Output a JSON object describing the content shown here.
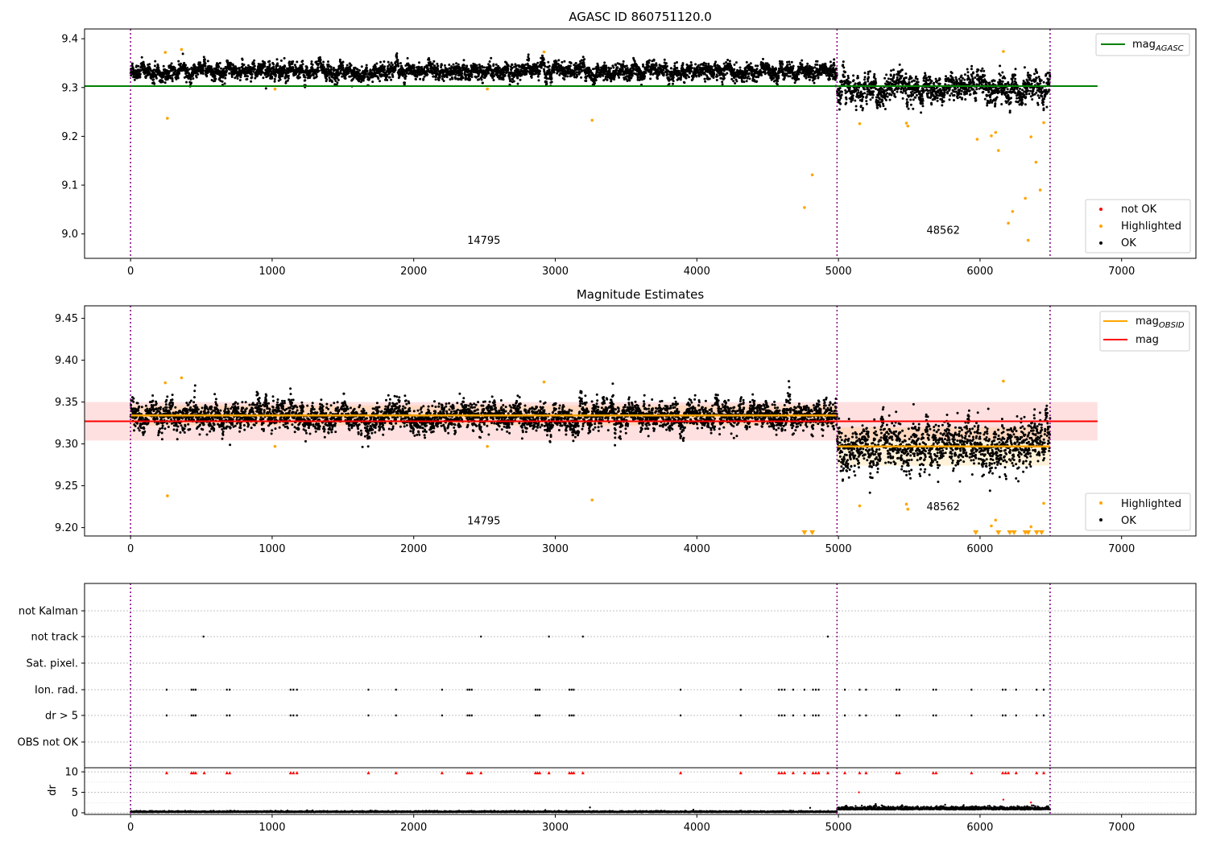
{
  "chart_data": [
    {
      "type": "scatter",
      "title": "AGASC ID 860751120.0",
      "xlim": [
        -325,
        7525
      ],
      "ylim": [
        8.95,
        9.42
      ],
      "xticks": [
        0,
        1000,
        2000,
        3000,
        4000,
        5000,
        6000,
        7000
      ],
      "yticks": [
        9.0,
        9.1,
        9.2,
        9.3,
        9.4
      ],
      "ytick_labels": [
        "9.0",
        "9.1",
        "9.2",
        "9.3",
        "9.4"
      ],
      "grid": false,
      "vlines": [
        0,
        4990,
        6495
      ],
      "obsid_labels": [
        {
          "text": "14795",
          "x": 2495,
          "y": 8.98
        },
        {
          "text": "48562",
          "x": 5740,
          "y": 9.0
        }
      ],
      "hline": {
        "y": 9.303,
        "x0": -325,
        "x1": 6830,
        "color": "#008000"
      },
      "legend_lines": [
        {
          "label_main": "mag",
          "label_sub": "AGASC",
          "color": "#008000"
        }
      ],
      "legend_lines_position": "top-right",
      "legend_points": [
        {
          "label": "not OK",
          "color": "#ff0000"
        },
        {
          "label": "Highlighted",
          "color": "#ffa500"
        },
        {
          "label": "OK",
          "color": "#000000"
        }
      ],
      "legend_points_position": "bottom-right",
      "ok_series": [
        {
          "x0": 0,
          "x1": 4990,
          "mean": 9.333,
          "spread": 0.016
        },
        {
          "x0": 4990,
          "x1": 6495,
          "mean": 9.297,
          "spread": 0.028
        }
      ],
      "highlighted": [
        [
          245,
          9.372
        ],
        [
          260,
          9.237
        ],
        [
          360,
          9.378
        ],
        [
          1020,
          9.297
        ],
        [
          2520,
          9.297
        ],
        [
          2920,
          9.373
        ],
        [
          3260,
          9.233
        ],
        [
          4760,
          9.054
        ],
        [
          4815,
          9.121
        ],
        [
          5150,
          9.226
        ],
        [
          5480,
          9.227
        ],
        [
          5490,
          9.221
        ],
        [
          5980,
          9.194
        ],
        [
          6080,
          9.201
        ],
        [
          6110,
          9.208
        ],
        [
          6130,
          9.171
        ],
        [
          6165,
          9.374
        ],
        [
          6200,
          9.022
        ],
        [
          6230,
          9.046
        ],
        [
          6320,
          9.073
        ],
        [
          6340,
          8.987
        ],
        [
          6360,
          9.199
        ],
        [
          6395,
          9.147
        ],
        [
          6425,
          9.09
        ],
        [
          6450,
          9.228
        ]
      ]
    },
    {
      "type": "scatter",
      "title": "Magnitude Estimates",
      "xlim": [
        -325,
        7525
      ],
      "ylim": [
        9.19,
        9.465
      ],
      "xticks": [
        0,
        1000,
        2000,
        3000,
        4000,
        5000,
        6000,
        7000
      ],
      "yticks": [
        9.2,
        9.25,
        9.3,
        9.35,
        9.4,
        9.45
      ],
      "ytick_labels": [
        "9.20",
        "9.25",
        "9.30",
        "9.35",
        "9.40",
        "9.45"
      ],
      "grid": false,
      "vlines": [
        0,
        4990,
        6495
      ],
      "obsid_labels": [
        {
          "text": "14795",
          "x": 2495,
          "y": 9.204
        },
        {
          "text": "48562",
          "x": 5740,
          "y": 9.221
        }
      ],
      "mag": {
        "y": 9.327,
        "band": [
          9.304,
          9.35
        ],
        "x0": -325,
        "x1": 6830,
        "color": "#ff0000"
      },
      "mag_obsid": [
        {
          "x0": 0,
          "x1": 4990,
          "y": 9.334,
          "band": [
            9.322,
            9.346
          ]
        },
        {
          "x0": 4990,
          "x1": 6495,
          "y": 9.297,
          "band": [
            9.274,
            9.32
          ]
        }
      ],
      "legend_lines": [
        {
          "label_main": "mag",
          "label_sub": "OBSID",
          "color": "#ffa500"
        },
        {
          "label_main": "mag",
          "label_sub": "",
          "color": "#ff0000"
        }
      ],
      "legend_lines_position": "top-right",
      "legend_points": [
        {
          "label": "Highlighted",
          "color": "#ffa500"
        },
        {
          "label": "OK",
          "color": "#000000"
        }
      ],
      "legend_points_position": "bottom-right",
      "ok_series": [
        {
          "x0": 0,
          "x1": 4990,
          "mean": 9.333,
          "spread": 0.016
        },
        {
          "x0": 4990,
          "x1": 6495,
          "mean": 9.297,
          "spread": 0.028
        }
      ],
      "highlighted": [
        [
          245,
          9.373
        ],
        [
          260,
          9.238
        ],
        [
          360,
          9.379
        ],
        [
          1020,
          9.297
        ],
        [
          2520,
          9.297
        ],
        [
          2920,
          9.374
        ],
        [
          3260,
          9.233
        ],
        [
          5150,
          9.226
        ],
        [
          5480,
          9.228
        ],
        [
          5490,
          9.222
        ],
        [
          6080,
          9.202
        ],
        [
          6110,
          9.209
        ],
        [
          6165,
          9.375
        ],
        [
          6360,
          9.201
        ],
        [
          6450,
          9.229
        ]
      ],
      "clipped_markers_x": [
        4760,
        4815,
        5970,
        6130,
        6210,
        6240,
        6320,
        6340,
        6400,
        6435
      ]
    },
    {
      "type": "scatter",
      "title": "",
      "xlim": [
        -325,
        7525
      ],
      "vlines": [
        0,
        4990,
        6495
      ],
      "flag_categories": [
        "not Kalman",
        "not track",
        "Sat. pixel.",
        "Ion. rad.",
        "dr > 5",
        "OBS not OK"
      ],
      "flags": {
        "not Kalman": [],
        "not track": [
          515,
          2475,
          2955,
          3195,
          4925
        ],
        "Sat. pixel.": [],
        "Ion. rad.": [
          255,
          430,
          445,
          460,
          680,
          700,
          1130,
          1150,
          1175,
          1680,
          1875,
          2200,
          2380,
          2395,
          2410,
          2860,
          2875,
          2890,
          3100,
          3115,
          3130,
          3885,
          4310,
          4580,
          4600,
          4620,
          4680,
          4760,
          4820,
          4840,
          4860,
          5045,
          5150,
          5195,
          5410,
          5430,
          5670,
          5690,
          5940,
          6160,
          6180,
          6255,
          6400,
          6450
        ],
        "dr > 5": [
          255,
          430,
          445,
          460,
          680,
          700,
          1130,
          1150,
          1175,
          1680,
          1875,
          2200,
          2380,
          2395,
          2410,
          2860,
          2875,
          2890,
          3100,
          3115,
          3130,
          3885,
          4310,
          4580,
          4600,
          4620,
          4680,
          4760,
          4820,
          4840,
          4860,
          5045,
          5150,
          5195,
          5410,
          5430,
          5670,
          5690,
          5940,
          6160,
          6180,
          6255,
          6400,
          6450
        ],
        "OBS not OK": []
      }
    },
    {
      "type": "scatter",
      "title": "",
      "ylabel": "dr",
      "xlim": [
        -325,
        7525
      ],
      "ylim": [
        -0.4,
        11
      ],
      "xticks": [
        0,
        1000,
        2000,
        3000,
        4000,
        5000,
        6000,
        7000
      ],
      "yticks": [
        0,
        5,
        10
      ],
      "vlines": [
        0,
        4990,
        6495
      ],
      "dr_series": [
        {
          "x0": 0,
          "x1": 4990,
          "mean": 0.2,
          "spread": 0.15
        },
        {
          "x0": 4990,
          "x1": 6495,
          "mean": 0.9,
          "spread": 0.45
        }
      ],
      "dr_outliers": [
        [
          3245,
          1.3
        ],
        [
          4800,
          1.2
        ],
        [
          5145,
          5.0
        ],
        [
          6165,
          3.2
        ],
        [
          6360,
          2.5
        ]
      ],
      "capped_value": 10,
      "capped_x": [
        255,
        430,
        445,
        460,
        520,
        680,
        700,
        1130,
        1150,
        1175,
        1680,
        1875,
        2200,
        2380,
        2395,
        2410,
        2475,
        2860,
        2875,
        2890,
        2955,
        3100,
        3115,
        3130,
        3195,
        3885,
        4310,
        4580,
        4600,
        4620,
        4680,
        4760,
        4820,
        4840,
        4860,
        4925,
        5045,
        5150,
        5195,
        5410,
        5430,
        5670,
        5690,
        5940,
        6160,
        6180,
        6200,
        6255,
        6400,
        6450
      ]
    }
  ]
}
